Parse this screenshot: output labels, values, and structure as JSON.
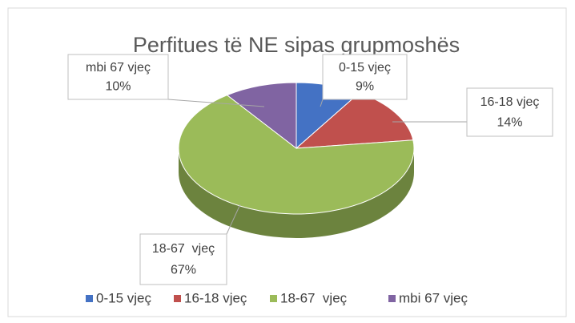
{
  "chart_data": {
    "type": "pie",
    "title": "Perfitues të NE sipas grupmoshës",
    "categories": [
      "0-15 vjeç",
      "16-18 vjeç",
      "18-67  vjeç",
      "mbi 67 vjeç"
    ],
    "values": [
      9,
      14,
      67,
      10
    ],
    "value_labels": [
      "9%",
      "14%",
      "67%",
      "10%"
    ],
    "colors": [
      "#4472c4",
      "#c0504d",
      "#9bbb59",
      "#8064a2"
    ],
    "legend": "bottom"
  }
}
